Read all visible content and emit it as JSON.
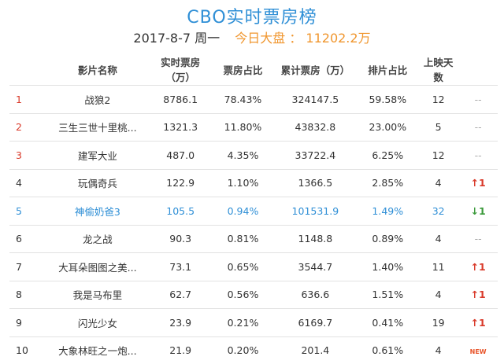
{
  "title": "CBO实时票房榜",
  "date": "2017-8-7 周一",
  "summary": "今日大盘 ： 11202.2万",
  "columns": [
    "",
    "影片名称",
    "实时票房（万）",
    "票房占比",
    "累计票房（万）",
    "排片占比",
    "上映天数",
    ""
  ],
  "rows": [
    {
      "rank": "1",
      "name": "战狼2",
      "box": "8786.1",
      "share": "78.43%",
      "cum": "324147.5",
      "sched": "59.58%",
      "days": "12",
      "trend": "--",
      "trend_type": "dash",
      "top": true,
      "hl": false
    },
    {
      "rank": "2",
      "name": "三生三世十里桃...",
      "box": "1321.3",
      "share": "11.80%",
      "cum": "43832.8",
      "sched": "23.00%",
      "days": "5",
      "trend": "--",
      "trend_type": "dash",
      "top": true,
      "hl": false
    },
    {
      "rank": "3",
      "name": "建军大业",
      "box": "487.0",
      "share": "4.35%",
      "cum": "33722.4",
      "sched": "6.25%",
      "days": "12",
      "trend": "--",
      "trend_type": "dash",
      "top": true,
      "hl": false
    },
    {
      "rank": "4",
      "name": "玩偶奇兵",
      "box": "122.9",
      "share": "1.10%",
      "cum": "1366.5",
      "sched": "2.85%",
      "days": "4",
      "trend": "↑1",
      "trend_type": "up",
      "top": false,
      "hl": false
    },
    {
      "rank": "5",
      "name": "神偷奶爸3",
      "box": "105.5",
      "share": "0.94%",
      "cum": "101531.9",
      "sched": "1.49%",
      "days": "32",
      "trend": "↓1",
      "trend_type": "down",
      "top": false,
      "hl": true
    },
    {
      "rank": "6",
      "name": "龙之战",
      "box": "90.3",
      "share": "0.81%",
      "cum": "1148.8",
      "sched": "0.89%",
      "days": "4",
      "trend": "--",
      "trend_type": "dash",
      "top": false,
      "hl": false
    },
    {
      "rank": "7",
      "name": "大耳朵图图之美...",
      "box": "73.1",
      "share": "0.65%",
      "cum": "3544.7",
      "sched": "1.40%",
      "days": "11",
      "trend": "↑1",
      "trend_type": "up",
      "top": false,
      "hl": false
    },
    {
      "rank": "8",
      "name": "我是马布里",
      "box": "62.7",
      "share": "0.56%",
      "cum": "636.6",
      "sched": "1.51%",
      "days": "4",
      "trend": "↑1",
      "trend_type": "up",
      "top": false,
      "hl": false
    },
    {
      "rank": "9",
      "name": "闪光少女",
      "box": "23.9",
      "share": "0.21%",
      "cum": "6169.7",
      "sched": "0.41%",
      "days": "19",
      "trend": "↑1",
      "trend_type": "up",
      "top": false,
      "hl": false
    },
    {
      "rank": "10",
      "name": "大象林旺之一炮...",
      "box": "21.9",
      "share": "0.20%",
      "cum": "201.4",
      "sched": "0.61%",
      "days": "4",
      "trend": "NEW",
      "trend_type": "new",
      "top": false,
      "hl": false
    }
  ],
  "colors": {
    "accent": "#2f8fd6",
    "highlight": "#f0962e",
    "up": "#d93a2a",
    "down": "#3a9a3a"
  }
}
